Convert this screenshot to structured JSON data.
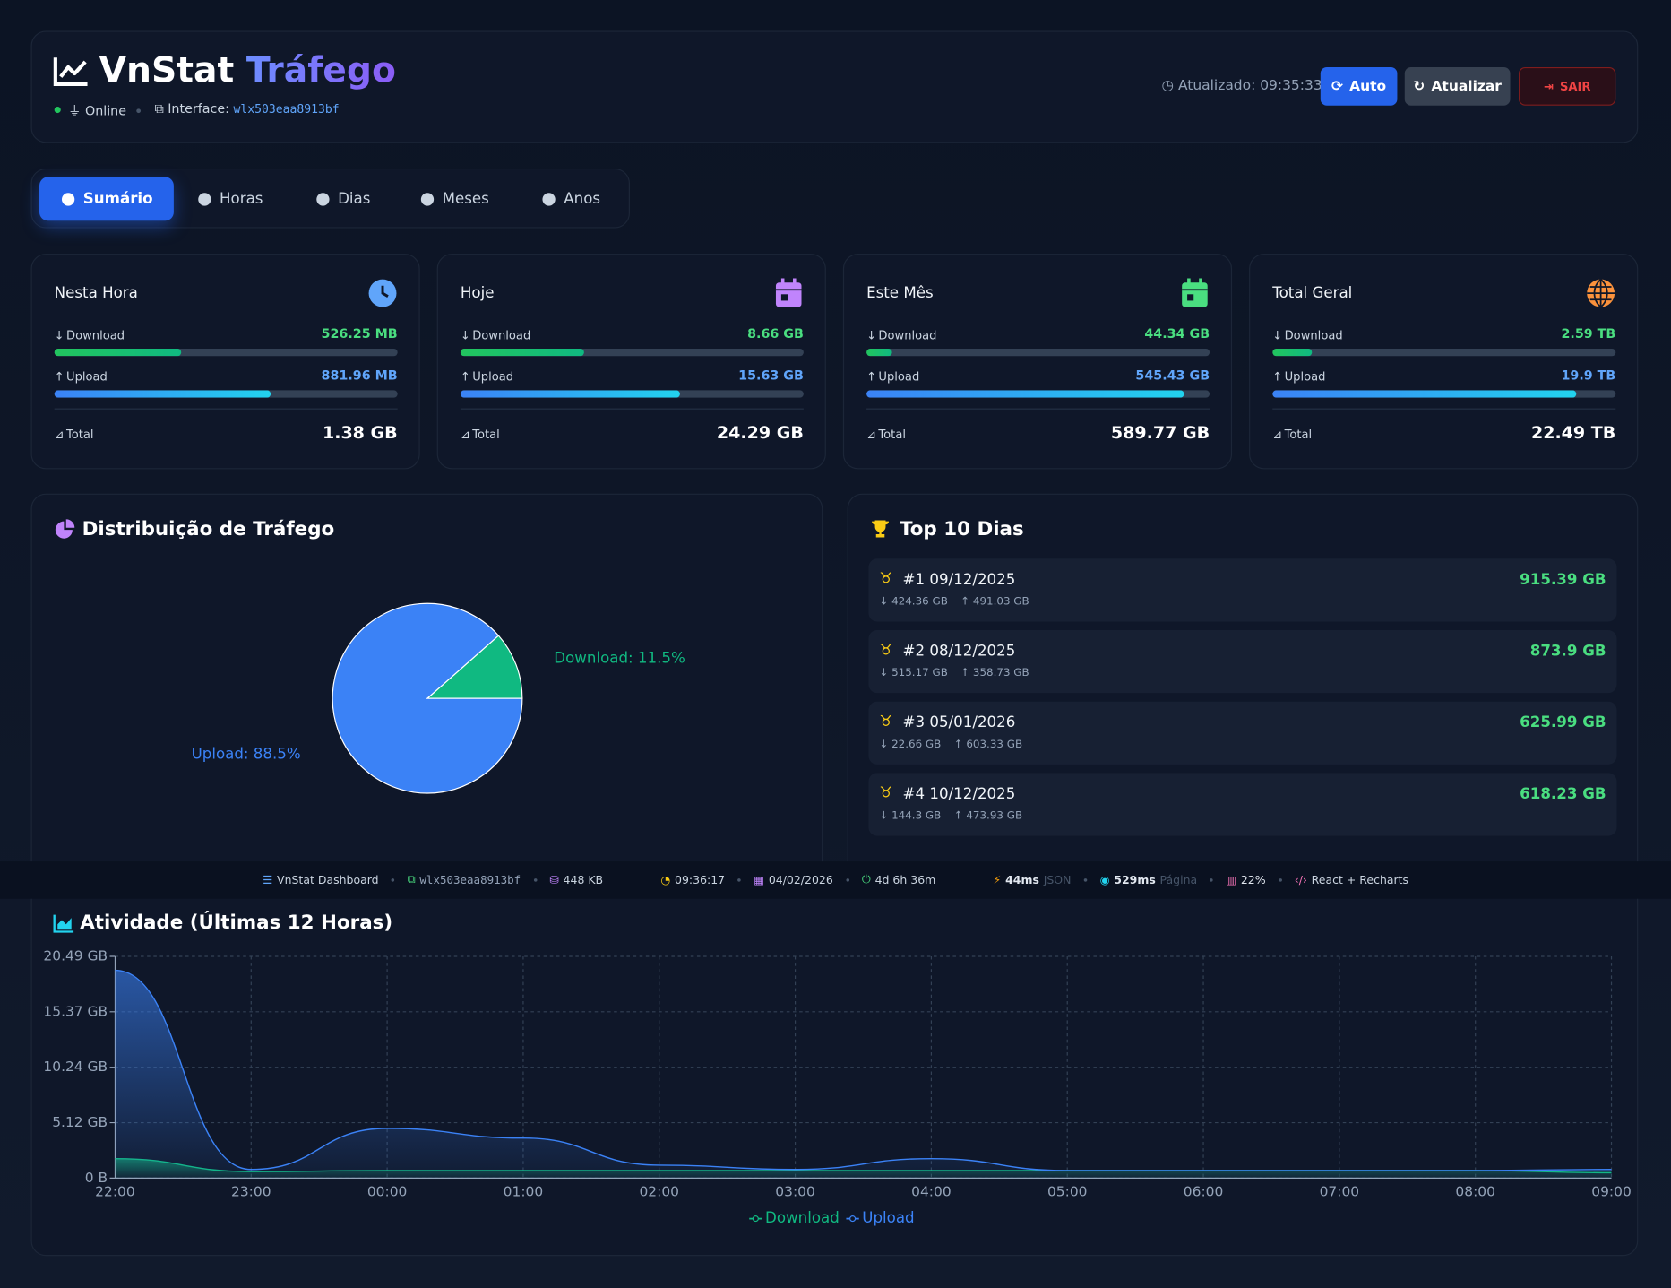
{
  "header": {
    "title": "VnStat",
    "title_accent": "Tráfego",
    "status": "Online",
    "interface_label": "Interface:",
    "interface": "wlx503eaa8913bf",
    "updated": "Atualizado: 09:35:33",
    "buttons": [
      "Auto",
      "Atualizar",
      "SAIR"
    ]
  },
  "tabs": [
    "Sumário",
    "Horas",
    "Dias",
    "Meses",
    "Anos"
  ],
  "cards": [
    {
      "title": "Nesta Hora",
      "icon_color": "#60a5fa",
      "download_label": "Download",
      "download": "526.25 MB",
      "upload_label": "Upload",
      "upload": "881.96 MB",
      "total_label": "Total",
      "total": "1.38 GB",
      "download_share": 37,
      "upload_share": 63
    },
    {
      "title": "Hoje",
      "icon_color": "#c084fc",
      "download_label": "Download",
      "download": "8.66 GB",
      "upload_label": "Upload",
      "upload": "15.63 GB",
      "total_label": "Total",
      "total": "24.29 GB",
      "download_share": 36,
      "upload_share": 64
    },
    {
      "title": "Este Mês",
      "icon_color": "#4ade80",
      "download_label": "Download",
      "download": "44.34 GB",
      "upload_label": "Upload",
      "upload": "545.43 GB",
      "total_label": "Total",
      "total": "589.77 GB",
      "download_share": 7.5,
      "upload_share": 92.5
    },
    {
      "title": "Total Geral",
      "icon_color": "#fb923c",
      "download_label": "Download",
      "download": "2.59 TB",
      "upload_label": "Upload",
      "upload": "19.9 TB",
      "total_label": "Total",
      "total": "22.49 TB",
      "download_share": 11.5,
      "upload_share": 88.5
    }
  ],
  "top_days": {
    "title": "Top 10 Dias",
    "items": [
      {
        "rank": "#1",
        "date": "09/12/2025",
        "total": "915.39 GB",
        "down": "424.36 GB",
        "up": "491.03 GB"
      },
      {
        "rank": "#2",
        "date": "08/12/2025",
        "total": "873.9 GB",
        "down": "515.17 GB",
        "up": "358.73 GB"
      },
      {
        "rank": "#3",
        "date": "05/01/2026",
        "total": "625.99 GB",
        "down": "22.66 GB",
        "up": "603.33 GB"
      },
      {
        "rank": "#4",
        "date": "10/12/2025",
        "total": "618.23 GB",
        "down": "144.3 GB",
        "up": "473.93 GB"
      }
    ]
  },
  "footer": [
    {
      "text": "VnStat Dashboard",
      "color": "#cbd5e1"
    },
    {
      "text": "wlx503eaa8913bf",
      "color": "#94a3b8",
      "mono": true
    },
    {
      "text": "448 KB",
      "color": "#cbd5e1"
    },
    {
      "text": "09:36:17",
      "color": "#cbd5e1"
    },
    {
      "text": "04/02/2026",
      "color": "#cbd5e1"
    },
    {
      "text": "4d 6h 36m",
      "color": "#cbd5e1"
    },
    {
      "text": "44ms",
      "note": "JSON",
      "color": "#e2e8f0"
    },
    {
      "text": "529ms",
      "note": "Página",
      "color": "#e2e8f0"
    },
    {
      "text": "22%",
      "color": "#e2e8f0"
    },
    {
      "text": "React + Recharts",
      "color": "#cbd5e1"
    }
  ],
  "chart_data": [
    {
      "type": "pie",
      "title": "Distribuição de Tráfego",
      "categories": [
        "Download",
        "Upload"
      ],
      "values": [
        11.5,
        88.5
      ],
      "value_labels": [
        "Download: 11.5%",
        "Upload: 88.5%"
      ],
      "colors": [
        "#10b981",
        "#3b82f6"
      ]
    },
    {
      "type": "area",
      "title": "Atividade (Últimas 12 Horas)",
      "categories": [
        "22:00",
        "23:00",
        "00:00",
        "01:00",
        "02:00",
        "03:00",
        "04:00",
        "05:00",
        "06:00",
        "07:00",
        "08:00",
        "09:00"
      ],
      "series": [
        {
          "name": "Download",
          "color": "#10b981",
          "values": [
            1.8,
            0.6,
            0.7,
            0.7,
            0.7,
            0.7,
            0.7,
            0.7,
            0.7,
            0.7,
            0.7,
            0.5
          ]
        },
        {
          "name": "Upload",
          "color": "#3b82f6",
          "values": [
            19.2,
            0.8,
            4.6,
            3.7,
            1.2,
            0.8,
            1.8,
            0.7,
            0.7,
            0.7,
            0.7,
            0.8
          ]
        }
      ],
      "ylim": [
        0,
        20.49
      ],
      "yticks": [
        {
          "value": 0,
          "label": "0 B"
        },
        {
          "value": 5.12,
          "label": "5.12 GB"
        },
        {
          "value": 10.24,
          "label": "10.24 GB"
        },
        {
          "value": 15.37,
          "label": "15.37 GB"
        },
        {
          "value": 20.49,
          "label": "20.49 GB"
        }
      ],
      "grid": true
    }
  ]
}
